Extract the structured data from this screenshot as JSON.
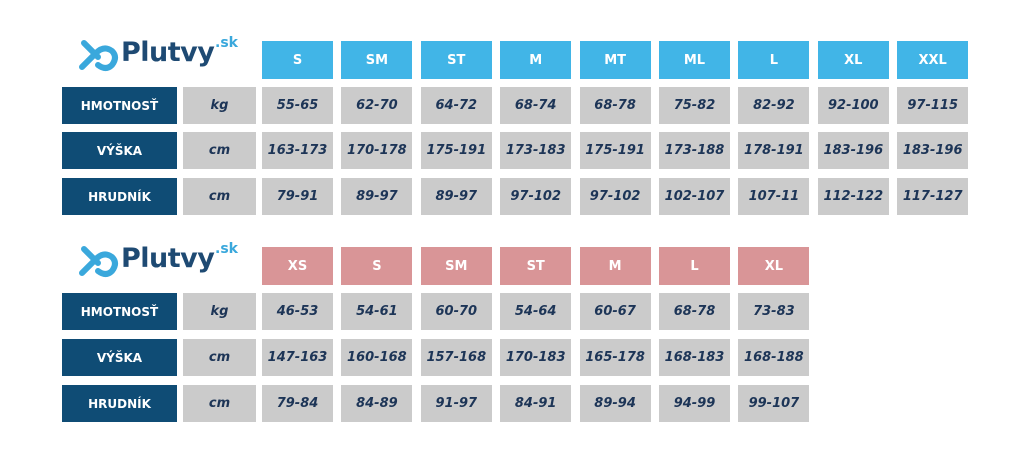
{
  "tables": [
    {
      "logo": {
        "name": "Plutvy",
        "suffix": ".sk"
      },
      "sizes": [
        "S",
        "SM",
        "ST",
        "M",
        "MT",
        "ML",
        "L",
        "XL",
        "XXL"
      ],
      "rows": [
        {
          "label": "HMOTNOSŤ",
          "unit": "kg",
          "values": [
            "55-65",
            "62-70",
            "64-72",
            "68-74",
            "68-78",
            "75-82",
            "82-92",
            "92-100",
            "97-115"
          ]
        },
        {
          "label": "VÝŠKA",
          "unit": "cm",
          "values": [
            "163-173",
            "170-178",
            "175-191",
            "173-183",
            "175-191",
            "173-188",
            "178-191",
            "183-196",
            "183-196"
          ]
        },
        {
          "label": "HRUDNÍK",
          "unit": "cm",
          "values": [
            "79-91",
            "89-97",
            "89-97",
            "97-102",
            "97-102",
            "102-107",
            "107-11",
            "112-122",
            "117-127"
          ]
        }
      ]
    },
    {
      "logo": {
        "name": "Plutvy",
        "suffix": ".sk"
      },
      "sizes": [
        "XS",
        "S",
        "SM",
        "ST",
        "M",
        "L",
        "XL"
      ],
      "rows": [
        {
          "label": "HMOTNOSŤ",
          "unit": "kg",
          "values": [
            "46-53",
            "54-61",
            "60-70",
            "54-64",
            "60-67",
            "68-78",
            "73-83"
          ]
        },
        {
          "label": "VÝŠKA",
          "unit": "cm",
          "values": [
            "147-163",
            "160-168",
            "157-168",
            "170-183",
            "165-178",
            "168-183",
            "168-188"
          ]
        },
        {
          "label": "HRUDNÍK",
          "unit": "cm",
          "values": [
            "79-84",
            "84-89",
            "91-97",
            "84-91",
            "89-94",
            "94-99",
            "99-107"
          ]
        }
      ]
    }
  ]
}
